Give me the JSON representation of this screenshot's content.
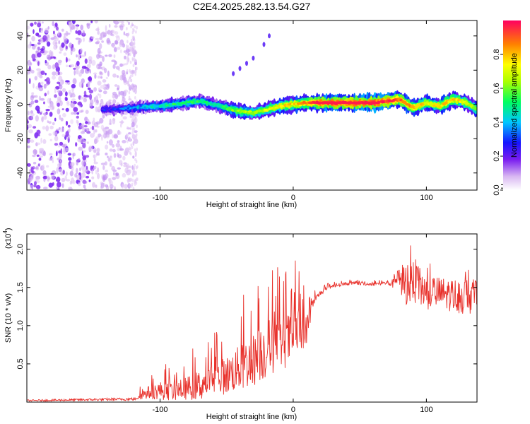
{
  "title": "C2E4.2025.282.13.54.G27",
  "chart_data": [
    {
      "type": "heatmap",
      "name": "spectrogram",
      "xlabel": "Height of straight line (km)",
      "ylabel": "Frequency (Hz)",
      "xlim": [
        -200,
        138
      ],
      "ylim": [
        -50,
        49
      ],
      "xticks": [
        -100,
        0,
        100
      ],
      "xtick_labels": [
        "-100",
        "0",
        "100"
      ],
      "yticks": [
        -40,
        -20,
        0,
        20,
        40
      ],
      "ytick_labels": [
        "-40",
        "-20",
        "0",
        "20",
        "40"
      ],
      "colorbar": {
        "label": "Normalized spectral amplitude",
        "ticks": [
          0.0,
          0.2,
          0.4,
          0.6,
          0.8
        ],
        "tick_labels": [
          "0.0",
          "0.2",
          "0.4",
          "0.6",
          "0.8"
        ],
        "range": [
          0,
          1
        ]
      },
      "ridge_frequency": {
        "x": [
          -140,
          -120,
          -100,
          -80,
          -70,
          -60,
          -50,
          -40,
          -30,
          -20,
          -10,
          0,
          10,
          20,
          40,
          60,
          70,
          80,
          90,
          100,
          110,
          120,
          130,
          138
        ],
        "freq": [
          -3,
          -2,
          -1,
          1,
          2,
          0,
          -2,
          -4,
          -5,
          -3,
          -1,
          0,
          1,
          1,
          1,
          1,
          2,
          3,
          -2,
          1,
          -1,
          3,
          1,
          -3
        ]
      },
      "ridge_amplitude": {
        "x": [
          -140,
          -120,
          -100,
          -80,
          -60,
          -40,
          -20,
          0,
          20,
          60,
          80,
          100,
          120,
          138
        ],
        "amp": [
          0.25,
          0.35,
          0.45,
          0.5,
          0.45,
          0.6,
          0.65,
          0.75,
          0.9,
          0.95,
          0.85,
          0.7,
          0.75,
          0.6
        ]
      },
      "harmonic_track": {
        "x": [
          -45,
          -40,
          -35,
          -30,
          -22,
          -18
        ],
        "freq": [
          18,
          21,
          24,
          27,
          35,
          40
        ]
      }
    },
    {
      "type": "line",
      "name": "snr",
      "xlabel": "Height of straight line (km)",
      "ylabel": "SNR (10 * v/v)",
      "y_multiplier": "(x10",
      "y_multiplier_exp": "4",
      "y_multiplier_close": ")",
      "xlim": [
        -200,
        138
      ],
      "ylim": [
        0,
        2.2
      ],
      "xticks": [
        -100,
        0,
        100
      ],
      "xtick_labels": [
        "-100",
        "0",
        "100"
      ],
      "yticks": [
        0.5,
        1.0,
        1.5,
        2.0
      ],
      "ytick_labels": [
        "0.5",
        "1.0",
        "1.5",
        "2.0"
      ],
      "series": [
        {
          "name": "SNR",
          "color": "#e8302a",
          "x": [
            -200,
            -160,
            -120,
            -110,
            -100,
            -90,
            -80,
            -70,
            -60,
            -50,
            -40,
            -30,
            -20,
            -10,
            0,
            5,
            8,
            12,
            15,
            20,
            25,
            30,
            40,
            50,
            60,
            70,
            75,
            80,
            85,
            90,
            95,
            100,
            110,
            120,
            130,
            138
          ],
          "y": [
            0.02,
            0.03,
            0.04,
            0.12,
            0.15,
            0.14,
            0.18,
            0.22,
            0.3,
            0.35,
            0.45,
            0.55,
            0.7,
            0.75,
            0.85,
            0.95,
            0.8,
            1.1,
            1.3,
            1.42,
            1.48,
            1.52,
            1.55,
            1.55,
            1.54,
            1.56,
            1.55,
            1.6,
            1.55,
            1.6,
            1.5,
            1.45,
            1.42,
            1.4,
            1.38,
            1.4
          ],
          "noise": [
            0.01,
            0.015,
            0.02,
            0.08,
            0.12,
            0.12,
            0.15,
            0.2,
            0.22,
            0.25,
            0.3,
            0.35,
            0.4,
            0.35,
            0.35,
            0.3,
            0.25,
            0.15,
            0.06,
            0.03,
            0.025,
            0.02,
            0.02,
            0.02,
            0.02,
            0.03,
            0.06,
            0.2,
            0.3,
            0.32,
            0.28,
            0.25,
            0.22,
            0.22,
            0.25,
            0.2
          ]
        }
      ]
    }
  ]
}
